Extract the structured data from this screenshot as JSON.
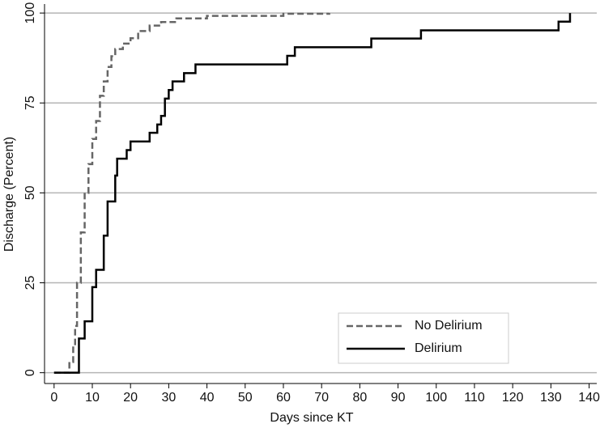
{
  "chart_data": {
    "type": "line",
    "step": "post",
    "x_label": "Days since KT",
    "y_label": "Discharge (Percent)",
    "xlim": [
      -2.5,
      142
    ],
    "ylim": [
      -3,
      102.5
    ],
    "xticks": [
      0,
      10,
      20,
      30,
      40,
      50,
      60,
      70,
      80,
      90,
      100,
      110,
      120,
      130,
      140
    ],
    "yticks": [
      0,
      25,
      50,
      75,
      100
    ],
    "grid": true,
    "legend": "lower right",
    "series": [
      {
        "name": "No Delirium",
        "color": "#666666",
        "dash": true,
        "x": [
          0,
          4,
          5,
          5.5,
          6,
          7,
          8,
          9,
          10,
          11,
          12,
          13,
          14,
          15,
          16,
          18,
          20,
          22,
          25,
          28,
          32,
          40,
          60,
          72
        ],
        "values": [
          0,
          3,
          7,
          13,
          25,
          39,
          50,
          58,
          65,
          70,
          77,
          81,
          85,
          88,
          90,
          91.5,
          93,
          95,
          96.5,
          97.5,
          98.5,
          99.2,
          99.8,
          100
        ]
      },
      {
        "name": "Delirium",
        "color": "#000000",
        "dash": false,
        "x": [
          0,
          6.5,
          8,
          10,
          11,
          13,
          14,
          16,
          16.5,
          19,
          20,
          25,
          27,
          28,
          29,
          30,
          31,
          34,
          37,
          61,
          63,
          83,
          96,
          132,
          135
        ],
        "values": [
          0,
          9.5,
          14.3,
          23.8,
          28.6,
          38.1,
          47.6,
          54.8,
          59.5,
          61.9,
          64.3,
          66.7,
          69,
          71.4,
          76.2,
          78.6,
          81,
          83.3,
          85.7,
          88.1,
          90.5,
          92.9,
          95.2,
          97.6,
          100
        ]
      }
    ]
  }
}
